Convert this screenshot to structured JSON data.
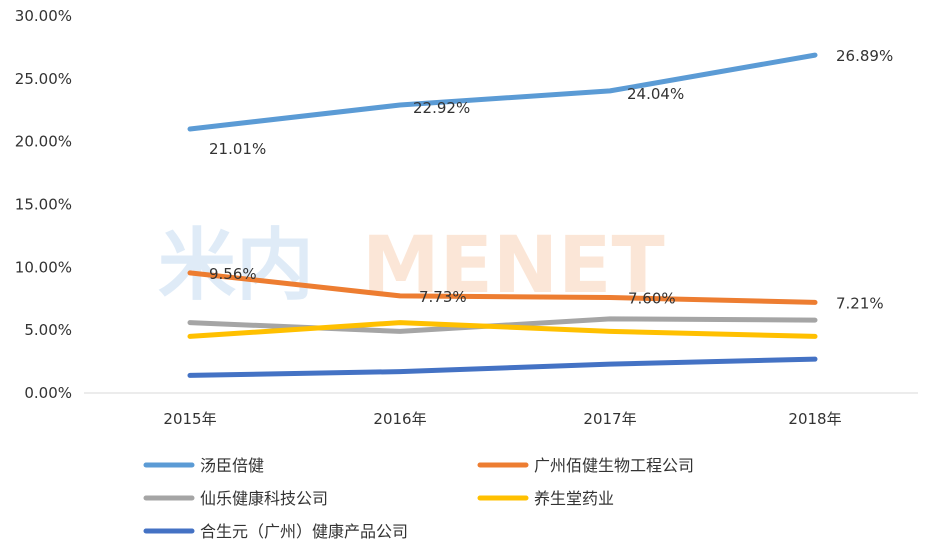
{
  "watermark": {
    "part1": "米内",
    "part2": "MENET"
  },
  "chart_data": {
    "type": "line",
    "categories": [
      "2015年",
      "2016年",
      "2017年",
      "2018年"
    ],
    "ylim": [
      0,
      30
    ],
    "yticks": [
      "0.00%",
      "5.00%",
      "10.00%",
      "15.00%",
      "20.00%",
      "25.00%",
      "30.00%"
    ],
    "series": [
      {
        "name": "汤臣倍健",
        "color": "#5b9bd5",
        "values": [
          21.01,
          22.92,
          24.04,
          26.89
        ],
        "labels": [
          "21.01%",
          "22.92%",
          "24.04%",
          "26.89%"
        ]
      },
      {
        "name": "广州佰健生物工程公司",
        "color": "#ed7d31",
        "values": [
          9.56,
          7.73,
          7.6,
          7.21
        ],
        "labels": [
          "9.56%",
          "7.73%",
          "7.60%",
          "7.21%"
        ]
      },
      {
        "name": "仙乐健康科技公司",
        "color": "#a5a5a5",
        "values": [
          5.6,
          4.9,
          5.9,
          5.8
        ],
        "labels": []
      },
      {
        "name": "养生堂药业",
        "color": "#ffc000",
        "values": [
          4.5,
          5.6,
          4.9,
          4.5
        ],
        "labels": []
      },
      {
        "name": "合生元（广州）健康产品公司",
        "color": "#4472c4",
        "values": [
          1.4,
          1.7,
          2.3,
          2.7
        ],
        "labels": []
      }
    ]
  }
}
